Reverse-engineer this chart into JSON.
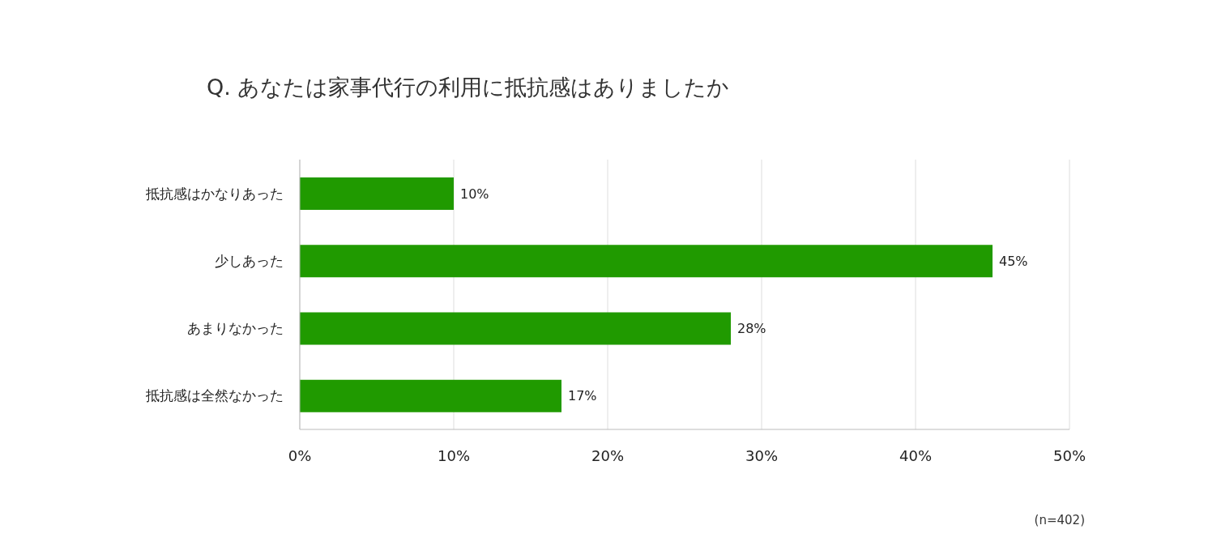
{
  "chart_data": {
    "type": "bar",
    "orientation": "horizontal",
    "title": "Q. あなたは家事代行の利用に抵抗感はありましたか",
    "categories": [
      "抵抗感はかなりあった",
      "少しあった",
      "あまりなかった",
      "抵抗感は全然なかった"
    ],
    "values": [
      10,
      45,
      28,
      17
    ],
    "value_labels": [
      "10%",
      "45%",
      "28%",
      "17%"
    ],
    "color": "#209a00",
    "xlim": [
      0,
      50
    ],
    "xticks": [
      {
        "value": 0,
        "label": "0%"
      },
      {
        "value": 10,
        "label": "10%"
      },
      {
        "value": 20,
        "label": "20%"
      },
      {
        "value": 30,
        "label": "30%"
      },
      {
        "value": 40,
        "label": "40%"
      },
      {
        "value": 50,
        "label": "50%"
      }
    ],
    "grid": "x",
    "annotations": [
      "(n=402)"
    ]
  }
}
